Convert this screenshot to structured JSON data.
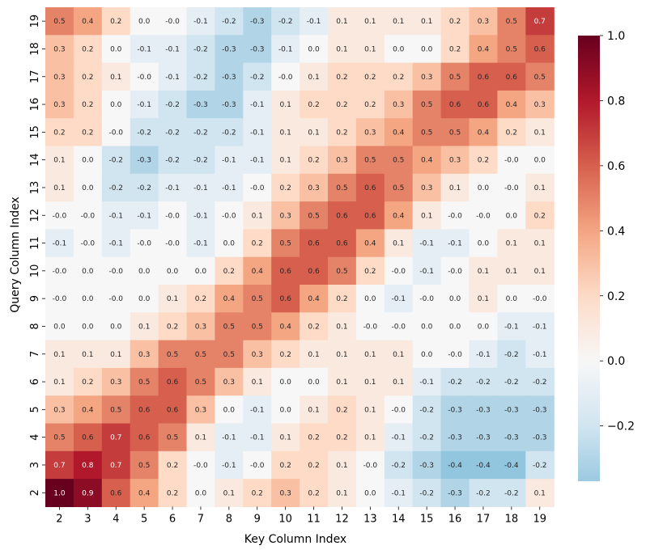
{
  "chart_data": {
    "type": "heatmap",
    "title": "",
    "xlabel": "Key Column Index",
    "ylabel": "Query Column Index",
    "x_categories": [
      "2",
      "3",
      "4",
      "5",
      "6",
      "7",
      "8",
      "9",
      "10",
      "11",
      "12",
      "13",
      "14",
      "15",
      "16",
      "17",
      "18",
      "19"
    ],
    "y_categories_top_to_bottom": [
      "19",
      "18",
      "17",
      "16",
      "15",
      "14",
      "13",
      "12",
      "11",
      "10",
      "9",
      "8",
      "7",
      "6",
      "5",
      "4",
      "3",
      "2"
    ],
    "value_labels": [
      [
        "0.5",
        "0.4",
        "0.2",
        "0.0",
        "-0.0",
        "-0.1",
        "-0.2",
        "-0.3",
        "-0.2",
        "-0.1",
        "0.1",
        "0.1",
        "0.1",
        "0.1",
        "0.2",
        "0.3",
        "0.5",
        "0.7"
      ],
      [
        "0.3",
        "0.2",
        "0.0",
        "-0.1",
        "-0.1",
        "-0.2",
        "-0.3",
        "-0.3",
        "-0.1",
        "0.0",
        "0.1",
        "0.1",
        "0.0",
        "0.0",
        "0.2",
        "0.4",
        "0.5",
        "0.6"
      ],
      [
        "0.3",
        "0.2",
        "0.1",
        "-0.0",
        "-0.1",
        "-0.2",
        "-0.3",
        "-0.2",
        "-0.0",
        "0.1",
        "0.2",
        "0.2",
        "0.2",
        "0.3",
        "0.5",
        "0.6",
        "0.6",
        "0.5"
      ],
      [
        "0.3",
        "0.2",
        "0.0",
        "-0.1",
        "-0.2",
        "-0.3",
        "-0.3",
        "-0.1",
        "0.1",
        "0.2",
        "0.2",
        "0.2",
        "0.3",
        "0.5",
        "0.6",
        "0.6",
        "0.4",
        "0.3"
      ],
      [
        "0.2",
        "0.2",
        "-0.0",
        "-0.2",
        "-0.2",
        "-0.2",
        "-0.2",
        "-0.1",
        "0.1",
        "0.1",
        "0.2",
        "0.3",
        "0.4",
        "0.5",
        "0.5",
        "0.4",
        "0.2",
        "0.1"
      ],
      [
        "0.1",
        "0.0",
        "-0.2",
        "-0.3",
        "-0.2",
        "-0.2",
        "-0.1",
        "-0.1",
        "0.1",
        "0.2",
        "0.3",
        "0.5",
        "0.5",
        "0.4",
        "0.3",
        "0.2",
        "-0.0",
        "0.0"
      ],
      [
        "0.1",
        "0.0",
        "-0.2",
        "-0.2",
        "-0.1",
        "-0.1",
        "-0.1",
        "-0.0",
        "0.2",
        "0.3",
        "0.5",
        "0.6",
        "0.5",
        "0.3",
        "0.1",
        "0.0",
        "-0.0",
        "0.1"
      ],
      [
        "-0.0",
        "-0.0",
        "-0.1",
        "-0.1",
        "-0.0",
        "-0.1",
        "-0.0",
        "0.1",
        "0.3",
        "0.5",
        "0.6",
        "0.6",
        "0.4",
        "0.1",
        "-0.0",
        "-0.0",
        "0.0",
        "0.2"
      ],
      [
        "-0.1",
        "-0.0",
        "-0.1",
        "-0.0",
        "-0.0",
        "-0.1",
        "0.0",
        "0.2",
        "0.5",
        "0.6",
        "0.6",
        "0.4",
        "0.1",
        "-0.1",
        "-0.1",
        "0.0",
        "0.1",
        "0.1"
      ],
      [
        "-0.0",
        "0.0",
        "-0.0",
        "0.0",
        "0.0",
        "0.0",
        "0.2",
        "0.4",
        "0.6",
        "0.6",
        "0.5",
        "0.2",
        "-0.0",
        "-0.1",
        "-0.0",
        "0.1",
        "0.1",
        "0.1"
      ],
      [
        "-0.0",
        "0.0",
        "-0.0",
        "0.0",
        "0.1",
        "0.2",
        "0.4",
        "0.5",
        "0.6",
        "0.4",
        "0.2",
        "0.0",
        "-0.1",
        "-0.0",
        "0.0",
        "0.1",
        "0.0",
        "-0.0"
      ],
      [
        "0.0",
        "0.0",
        "0.0",
        "0.1",
        "0.2",
        "0.3",
        "0.5",
        "0.5",
        "0.4",
        "0.2",
        "0.1",
        "-0.0",
        "-0.0",
        "0.0",
        "0.0",
        "0.0",
        "-0.1",
        "-0.1"
      ],
      [
        "0.1",
        "0.1",
        "0.1",
        "0.3",
        "0.5",
        "0.5",
        "0.5",
        "0.3",
        "0.2",
        "0.1",
        "0.1",
        "0.1",
        "0.1",
        "0.0",
        "-0.0",
        "-0.1",
        "-0.2",
        "-0.1"
      ],
      [
        "0.1",
        "0.2",
        "0.3",
        "0.5",
        "0.6",
        "0.5",
        "0.3",
        "0.1",
        "0.0",
        "0.0",
        "0.1",
        "0.1",
        "0.1",
        "-0.1",
        "-0.2",
        "-0.2",
        "-0.2",
        "-0.2"
      ],
      [
        "0.3",
        "0.4",
        "0.5",
        "0.6",
        "0.6",
        "0.3",
        "0.0",
        "-0.1",
        "0.0",
        "0.1",
        "0.2",
        "0.1",
        "-0.0",
        "-0.2",
        "-0.3",
        "-0.3",
        "-0.3",
        "-0.3"
      ],
      [
        "0.5",
        "0.6",
        "0.7",
        "0.6",
        "0.5",
        "0.1",
        "-0.1",
        "-0.1",
        "0.1",
        "0.2",
        "0.2",
        "0.1",
        "-0.1",
        "-0.2",
        "-0.3",
        "-0.3",
        "-0.3",
        "-0.3"
      ],
      [
        "0.7",
        "0.8",
        "0.7",
        "0.5",
        "0.2",
        "-0.0",
        "-0.1",
        "-0.0",
        "0.2",
        "0.2",
        "0.1",
        "-0.0",
        "-0.2",
        "-0.3",
        "-0.4",
        "-0.4",
        "-0.4",
        "-0.2"
      ],
      [
        "1.0",
        "0.9",
        "0.6",
        "0.4",
        "0.2",
        "0.0",
        "0.1",
        "0.2",
        "0.3",
        "0.2",
        "0.1",
        "0.0",
        "-0.1",
        "-0.2",
        "-0.3",
        "-0.2",
        "-0.2",
        "0.1"
      ]
    ],
    "color_scale": {
      "min": -0.37,
      "max": 1.0,
      "center": 0.0,
      "colormap": "RdBu_r",
      "ticks": [
        "−0.2",
        "0.0",
        "0.2",
        "0.4",
        "0.6",
        "0.8",
        "1.0"
      ],
      "tick_values": [
        -0.2,
        0.0,
        0.2,
        0.4,
        0.6,
        0.8,
        1.0
      ]
    },
    "grid": false,
    "legend": "colorbar-right"
  }
}
